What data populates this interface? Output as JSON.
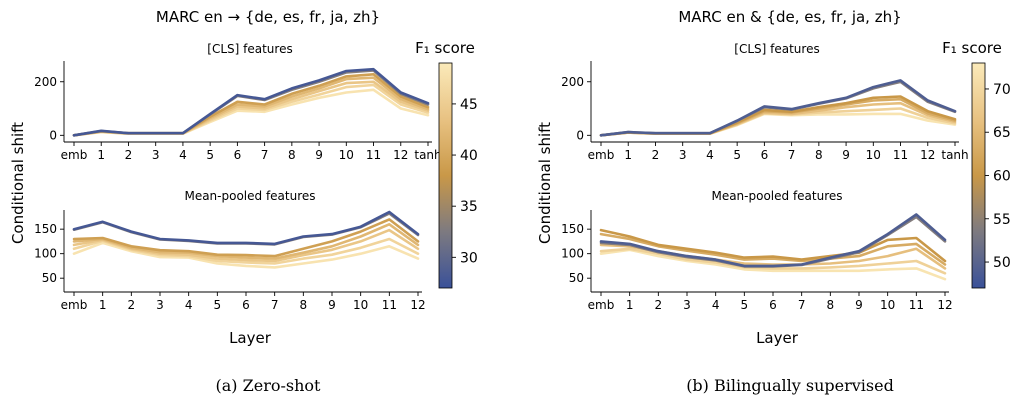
{
  "chart_data": [
    {
      "type": "line",
      "id": "a",
      "title": "MARC en → {de, es, fr, ja, zh}",
      "caption": "(a) Zero-shot",
      "colorbar": {
        "label": "F₁ score",
        "min": 27,
        "max": 49,
        "ticks": [
          30,
          35,
          40,
          45
        ],
        "tick_labels": [
          "30",
          "35",
          "40",
          "45"
        ]
      },
      "subplots": [
        {
          "subtitle": "[CLS] features",
          "ylabel": "",
          "xlabel": "",
          "categories": [
            "emb",
            "1",
            "2",
            "3",
            "4",
            "5",
            "6",
            "7",
            "8",
            "9",
            "10",
            "11",
            "12",
            "tanh"
          ],
          "ylim": [
            -10,
            270
          ],
          "yticks": [
            0,
            200
          ],
          "ytick_labels": [
            "0",
            "200"
          ],
          "series": [
            {
              "score": 28,
              "values": [
                0,
                17,
                8,
                8,
                8,
                80,
                150,
                135,
                175,
                205,
                240,
                247,
                160,
                120
              ]
            },
            {
              "score": 33,
              "values": [
                0,
                16,
                8,
                8,
                8,
                78,
                147,
                132,
                170,
                200,
                235,
                242,
                155,
                115
              ]
            },
            {
              "score": 39,
              "values": [
                0,
                15,
                8,
                8,
                8,
                70,
                125,
                115,
                155,
                185,
                220,
                228,
                145,
                105
              ]
            },
            {
              "score": 42,
              "values": [
                0,
                14,
                7,
                7,
                7,
                65,
                115,
                108,
                145,
                175,
                210,
                215,
                135,
                98
              ]
            },
            {
              "score": 44,
              "values": [
                0,
                14,
                7,
                7,
                7,
                60,
                108,
                100,
                135,
                165,
                195,
                200,
                125,
                92
              ]
            },
            {
              "score": 46,
              "values": [
                0,
                13,
                6,
                6,
                6,
                55,
                100,
                95,
                125,
                152,
                180,
                188,
                115,
                85
              ]
            },
            {
              "score": 48,
              "values": [
                0,
                12,
                6,
                6,
                6,
                50,
                92,
                88,
                115,
                140,
                160,
                170,
                100,
                75
              ]
            }
          ]
        },
        {
          "subtitle": "Mean-pooled features",
          "ylabel": "",
          "xlabel": "Layer",
          "categories": [
            "emb",
            "1",
            "2",
            "3",
            "4",
            "5",
            "6",
            "7",
            "8",
            "9",
            "10",
            "11",
            "12"
          ],
          "ylim": [
            30,
            185
          ],
          "yticks": [
            50,
            100,
            150
          ],
          "ytick_labels": [
            "50",
            "100",
            "150"
          ],
          "series": [
            {
              "score": 28,
              "values": [
                150,
                165,
                145,
                130,
                127,
                122,
                122,
                120,
                135,
                140,
                155,
                185,
                140
              ]
            },
            {
              "score": 33,
              "values": [
                149,
                164,
                144,
                129,
                126,
                121,
                121,
                119,
                134,
                139,
                154,
                182,
                138
              ]
            },
            {
              "score": 39,
              "values": [
                130,
                132,
                115,
                107,
                105,
                98,
                97,
                95,
                110,
                125,
                145,
                170,
                125
              ]
            },
            {
              "score": 42,
              "values": [
                125,
                130,
                112,
                103,
                102,
                95,
                92,
                90,
                102,
                115,
                135,
                160,
                118
              ]
            },
            {
              "score": 44,
              "values": [
                118,
                128,
                110,
                100,
                98,
                90,
                87,
                85,
                97,
                108,
                125,
                148,
                110
              ]
            },
            {
              "score": 46,
              "values": [
                110,
                126,
                108,
                97,
                95,
                85,
                82,
                80,
                90,
                98,
                112,
                130,
                100
              ]
            },
            {
              "score": 48,
              "values": [
                100,
                122,
                105,
                93,
                92,
                80,
                75,
                72,
                80,
                88,
                100,
                115,
                90
              ]
            }
          ]
        }
      ]
    },
    {
      "type": "line",
      "id": "b",
      "title": "MARC en & {de, es, fr, ja, zh}",
      "caption": "(b) Bilingually supervised",
      "colorbar": {
        "label": "F₁ score",
        "min": 47,
        "max": 73,
        "ticks": [
          50,
          55,
          60,
          65,
          70
        ],
        "tick_labels": [
          "50",
          "55",
          "60",
          "65",
          "70"
        ]
      },
      "subplots": [
        {
          "subtitle": "[CLS] features",
          "ylabel": "",
          "xlabel": "",
          "categories": [
            "emb",
            "1",
            "2",
            "3",
            "4",
            "5",
            "6",
            "7",
            "8",
            "9",
            "10",
            "11",
            "12",
            "tanh"
          ],
          "ylim": [
            -10,
            270
          ],
          "yticks": [
            0,
            200
          ],
          "ytick_labels": [
            "0",
            "200"
          ],
          "series": [
            {
              "score": 49,
              "values": [
                0,
                12,
                8,
                8,
                8,
                55,
                108,
                98,
                120,
                140,
                180,
                205,
                130,
                90
              ]
            },
            {
              "score": 54,
              "values": [
                0,
                12,
                8,
                8,
                8,
                54,
                105,
                96,
                118,
                138,
                175,
                200,
                125,
                88
              ]
            },
            {
              "score": 60,
              "values": [
                0,
                11,
                7,
                7,
                7,
                48,
                95,
                88,
                105,
                120,
                140,
                145,
                90,
                60
              ]
            },
            {
              "score": 63,
              "values": [
                0,
                11,
                7,
                7,
                7,
                45,
                90,
                85,
                100,
                115,
                130,
                135,
                82,
                55
              ]
            },
            {
              "score": 66,
              "values": [
                0,
                10,
                6,
                6,
                6,
                42,
                85,
                80,
                92,
                105,
                115,
                120,
                75,
                50
              ]
            },
            {
              "score": 69,
              "values": [
                0,
                10,
                6,
                6,
                6,
                40,
                82,
                78,
                85,
                90,
                95,
                100,
                65,
                45
              ]
            },
            {
              "score": 72,
              "values": [
                0,
                10,
                6,
                6,
                6,
                38,
                80,
                75,
                78,
                78,
                80,
                80,
                55,
                40
              ]
            }
          ]
        },
        {
          "subtitle": "Mean-pooled features",
          "ylabel": "",
          "xlabel": "Layer",
          "categories": [
            "emb",
            "1",
            "2",
            "3",
            "4",
            "5",
            "6",
            "7",
            "8",
            "9",
            "10",
            "11",
            "12"
          ],
          "ylim": [
            30,
            185
          ],
          "yticks": [
            50,
            100,
            150
          ],
          "ytick_labels": [
            "50",
            "100",
            "150"
          ],
          "series": [
            {
              "score": 49,
              "values": [
                125,
                120,
                105,
                95,
                88,
                75,
                75,
                78,
                92,
                105,
                140,
                180,
                128
              ]
            },
            {
              "score": 54,
              "values": [
                122,
                118,
                103,
                93,
                86,
                74,
                74,
                77,
                90,
                103,
                138,
                175,
                125
              ]
            },
            {
              "score": 60,
              "values": [
                148,
                135,
                118,
                110,
                102,
                92,
                94,
                88,
                95,
                102,
                128,
                132,
                85
              ]
            },
            {
              "score": 63,
              "values": [
                140,
                130,
                115,
                106,
                98,
                88,
                90,
                85,
                90,
                95,
                115,
                120,
                78
              ]
            },
            {
              "score": 66,
              "values": [
                118,
                115,
                105,
                95,
                88,
                80,
                78,
                78,
                80,
                85,
                95,
                110,
                70
              ]
            },
            {
              "score": 69,
              "values": [
                105,
                110,
                100,
                88,
                82,
                72,
                70,
                70,
                72,
                75,
                80,
                85,
                60
              ]
            },
            {
              "score": 72,
              "values": [
                100,
                108,
                95,
                85,
                78,
                68,
                65,
                65,
                65,
                65,
                68,
                70,
                48
              ]
            }
          ]
        }
      ]
    }
  ],
  "figure": {
    "ylabel": "Conditional shift"
  }
}
